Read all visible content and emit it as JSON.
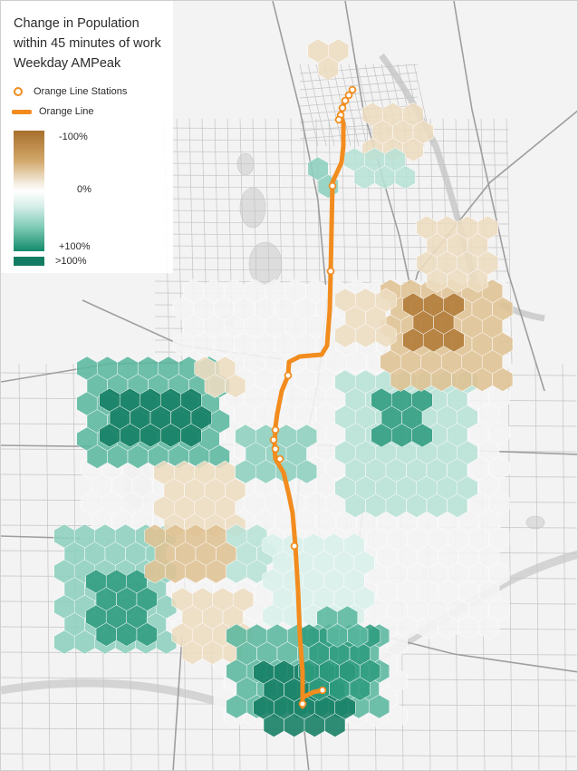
{
  "legend": {
    "title_lines": [
      "Change in Population",
      "within 45 minutes of work",
      "Weekday AMPeak"
    ],
    "stations_label": "Orange Line Stations",
    "line_label": "Orange Line",
    "ramp_top_label": "-100%",
    "ramp_mid_label": "0%",
    "ramp_bottom_label": "+100%",
    "over_label": ">100%"
  },
  "colors": {
    "orange_line": "#f28c1e",
    "decrease_strong": "#a86f2c",
    "decrease_light": "#e6d1ad",
    "increase_light": "#cfece5",
    "increase_strong": "#127d62",
    "increase_over": "#0f7a5c",
    "background": "#f2f2f2",
    "roads": "#b4b4b4",
    "water": "#dcdcdc"
  }
}
